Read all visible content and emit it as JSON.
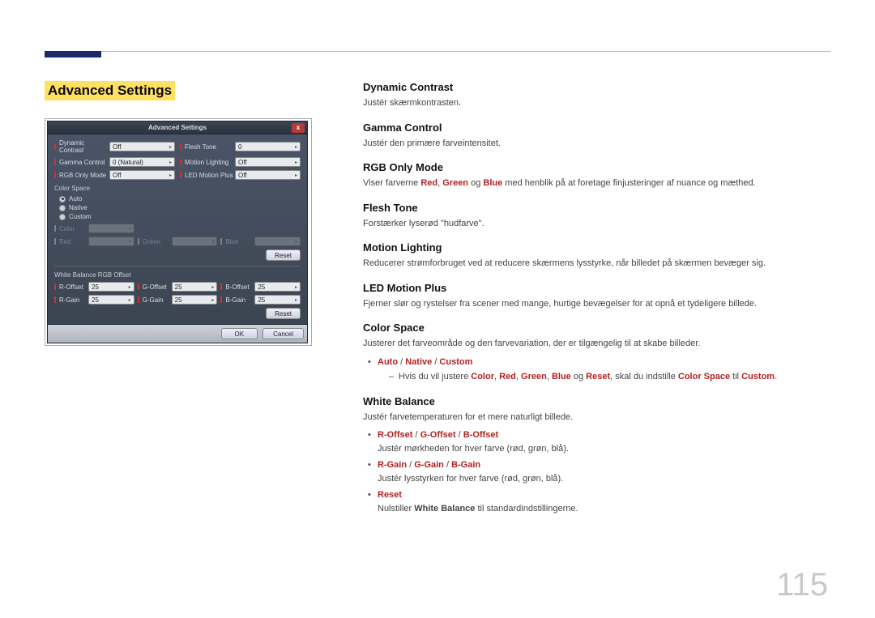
{
  "page_number": "115",
  "left": {
    "title": "Advanced Settings",
    "dialog": {
      "title": "Advanced Settings",
      "close_label": "x",
      "rows": [
        [
          {
            "label": "Dynamic Contrast",
            "value": "Off"
          },
          {
            "label": "Flesh Tone",
            "value": "0"
          }
        ],
        [
          {
            "label": "Gamma Control",
            "value": "0 (Natural)"
          },
          {
            "label": "Motion Lighting",
            "value": "Off"
          }
        ],
        [
          {
            "label": "RGB Only Mode",
            "value": "Off"
          },
          {
            "label": "LED Motion Plus",
            "value": "Off"
          }
        ]
      ],
      "color_space_label": "Color Space",
      "radios": [
        "Auto",
        "Native",
        "Custom"
      ],
      "custom_color_row": {
        "color_label": "Color",
        "color_val": "",
        "r": "Red",
        "g": "Green",
        "b": "Blue"
      },
      "reset_label": "Reset",
      "wb_label": "White Balance RGB Offset",
      "wb1": [
        {
          "label": "R-Offset",
          "value": "25"
        },
        {
          "label": "G-Offset",
          "value": "25"
        },
        {
          "label": "B-Offset",
          "value": "25"
        }
      ],
      "wb2": [
        {
          "label": "R-Gain",
          "value": "25"
        },
        {
          "label": "G-Gain",
          "value": "25"
        },
        {
          "label": "B-Gain",
          "value": "25"
        }
      ],
      "ok": "OK",
      "cancel": "Cancel"
    }
  },
  "right": {
    "sections": [
      {
        "h": "Dynamic Contrast",
        "p": "Justér skærmkontrasten."
      },
      {
        "h": "Gamma Control",
        "p": "Justér den primære farveintensitet."
      },
      {
        "h": "RGB Only Mode",
        "p_pre": "Viser farverne ",
        "red": "Red",
        "comma1": ", ",
        "green": "Green",
        "mid": " og ",
        "blue": "Blue",
        "p_post": " med henblik på at foretage finjusteringer af nuance og mæthed."
      },
      {
        "h": "Flesh Tone",
        "p": "Forstærker lyserød \"hudfarve\"."
      },
      {
        "h": "Motion Lighting",
        "p": "Reducerer strømforbruget ved at reducere skærmens lysstyrke, når billedet på skærmen bevæger sig."
      },
      {
        "h": "LED Motion Plus",
        "p": "Fjerner slør og rystelser fra scener med mange, hurtige bevægelser for at opnå et tydeligere billede."
      }
    ],
    "color_space": {
      "h": "Color Space",
      "p": "Justerer det farveområde og den farvevariation, der er tilgængelig til at skabe billeder.",
      "opts": {
        "auto": "Auto",
        "sep": " / ",
        "native": "Native",
        "custom": "Custom"
      },
      "sub_pre": "Hvis du vil justere ",
      "color": "Color",
      "s1": ", ",
      "red": "Red",
      "s2": ", ",
      "green": "Green",
      "s3": ", ",
      "blue": "Blue",
      "mid": " og ",
      "reset": "Reset",
      "mid2": ", skal du indstille ",
      "cs": "Color Space",
      "mid3": " til ",
      "cv": "Custom",
      "dot": "."
    },
    "white_balance": {
      "h": "White Balance",
      "p": "Justér farvetemperaturen for et mere naturligt billede.",
      "b1": {
        "r": "R-Offset",
        "sep": " / ",
        "g": "G-Offset",
        "b": "B-Offset",
        "p": "Justér mørkheden for hver farve (rød, grøn, blå)."
      },
      "b2": {
        "r": "R-Gain",
        "sep": " / ",
        "g": "G-Gain",
        "b": "B-Gain",
        "p": "Justér lysstyrken for hver farve (rød, grøn, blå)."
      },
      "b3": {
        "t": "Reset",
        "p_pre": "Nulstiller ",
        "wb": "White Balance",
        "p_post": " til standardindstillingerne."
      }
    }
  }
}
